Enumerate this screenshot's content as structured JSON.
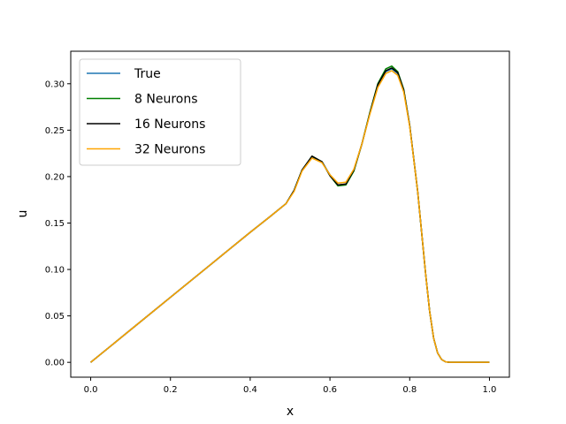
{
  "chart_data": {
    "type": "line",
    "title": "",
    "xlabel": "x",
    "ylabel": "u",
    "xlim": [
      -0.05,
      1.05
    ],
    "ylim": [
      -0.016,
      0.335
    ],
    "xticks": [
      0.0,
      0.2,
      0.4,
      0.6,
      0.8,
      1.0
    ],
    "xtick_labels": [
      "0.0",
      "0.2",
      "0.4",
      "0.6",
      "0.8",
      "1.0"
    ],
    "yticks": [
      0.0,
      0.05,
      0.1,
      0.15,
      0.2,
      0.25,
      0.3
    ],
    "ytick_labels": [
      "0.00",
      "0.05",
      "0.10",
      "0.15",
      "0.20",
      "0.25",
      "0.30"
    ],
    "grid": false,
    "legend_position": "top-left",
    "x": [
      0.0,
      0.1,
      0.2,
      0.3,
      0.4,
      0.45,
      0.49,
      0.51,
      0.53,
      0.555,
      0.58,
      0.6,
      0.62,
      0.64,
      0.66,
      0.68,
      0.7,
      0.72,
      0.74,
      0.755,
      0.77,
      0.785,
      0.8,
      0.82,
      0.84,
      0.85,
      0.86,
      0.87,
      0.88,
      0.89,
      0.9,
      0.95,
      1.0
    ],
    "series": [
      {
        "name": "True",
        "color": "#1f77b4",
        "values": [
          0.0,
          0.035,
          0.07,
          0.105,
          0.14,
          0.157,
          0.171,
          0.185,
          0.207,
          0.221,
          0.216,
          0.202,
          0.191,
          0.192,
          0.207,
          0.235,
          0.268,
          0.298,
          0.313,
          0.316,
          0.311,
          0.293,
          0.255,
          0.184,
          0.095,
          0.055,
          0.026,
          0.01,
          0.003,
          0.0005,
          0.0,
          0.0,
          0.0
        ]
      },
      {
        "name": "8 Neurons",
        "color": "#008000",
        "values": [
          0.0,
          0.035,
          0.07,
          0.105,
          0.14,
          0.157,
          0.171,
          0.185,
          0.207,
          0.222,
          0.216,
          0.201,
          0.19,
          0.191,
          0.206,
          0.235,
          0.269,
          0.3,
          0.316,
          0.319,
          0.313,
          0.294,
          0.255,
          0.184,
          0.095,
          0.055,
          0.026,
          0.01,
          0.003,
          0.0005,
          0.0,
          0.0,
          0.0
        ]
      },
      {
        "name": "16 Neurons",
        "color": "#000000",
        "values": [
          0.0,
          0.035,
          0.07,
          0.105,
          0.14,
          0.157,
          0.171,
          0.185,
          0.207,
          0.222,
          0.216,
          0.201,
          0.191,
          0.192,
          0.207,
          0.235,
          0.268,
          0.299,
          0.314,
          0.317,
          0.312,
          0.293,
          0.255,
          0.184,
          0.095,
          0.055,
          0.026,
          0.01,
          0.003,
          0.0005,
          0.0,
          0.0,
          0.0
        ]
      },
      {
        "name": "32 Neurons",
        "color": "#ffa500",
        "values": [
          0.0,
          0.035,
          0.07,
          0.105,
          0.14,
          0.157,
          0.171,
          0.184,
          0.206,
          0.22,
          0.215,
          0.202,
          0.193,
          0.194,
          0.208,
          0.235,
          0.267,
          0.296,
          0.311,
          0.314,
          0.309,
          0.291,
          0.254,
          0.184,
          0.095,
          0.055,
          0.026,
          0.01,
          0.003,
          0.0005,
          0.0,
          0.0,
          0.0
        ]
      }
    ]
  }
}
